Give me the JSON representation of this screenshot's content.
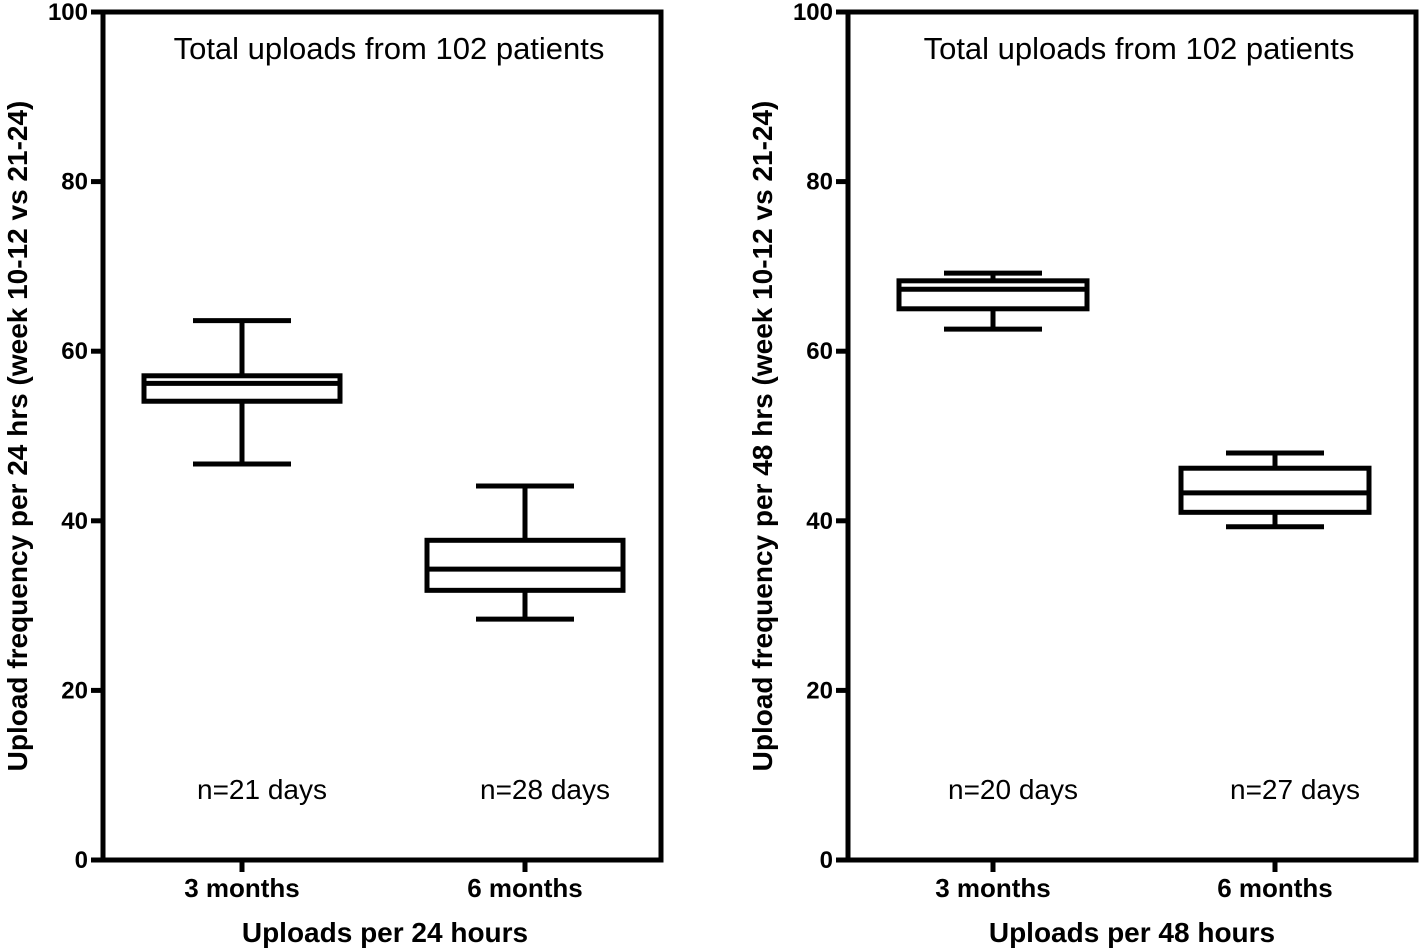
{
  "chart_data": [
    {
      "type": "box",
      "title": "Total uploads from 102 patients",
      "xlabel": "Uploads per 24 hours",
      "ylabel": "Upload frequency per 24 hrs (week 10-12 vs 21-24)",
      "ylim": [
        0,
        100
      ],
      "yticks": [
        0,
        20,
        40,
        60,
        80,
        100
      ],
      "grid": false,
      "categories": [
        "3 months",
        "6 months"
      ],
      "boxes": [
        {
          "category": "3 months",
          "min": 46.7,
          "q1": 54.1,
          "median": 56.2,
          "q3": 57.1,
          "max": 63.6,
          "annotation": "n=21 days"
        },
        {
          "category": "6 months",
          "min": 28.4,
          "q1": 31.8,
          "median": 34.3,
          "q3": 37.7,
          "max": 44.1,
          "annotation": "n=28 days"
        }
      ]
    },
    {
      "type": "box",
      "title": "Total uploads from 102 patients",
      "xlabel": "Uploads per 48 hours",
      "ylabel": "Upload frequency per 48 hrs (week 10-12 vs 21-24)",
      "ylim": [
        0,
        100
      ],
      "yticks": [
        0,
        20,
        40,
        60,
        80,
        100
      ],
      "grid": false,
      "categories": [
        "3 months",
        "6 months"
      ],
      "boxes": [
        {
          "category": "3 months",
          "min": 62.6,
          "q1": 65.0,
          "median": 67.3,
          "q3": 68.3,
          "max": 69.2,
          "annotation": "n=20 days"
        },
        {
          "category": "6 months",
          "min": 39.3,
          "q1": 41.0,
          "median": 43.3,
          "q3": 46.2,
          "max": 48.0,
          "annotation": "n=27 days"
        }
      ]
    }
  ]
}
